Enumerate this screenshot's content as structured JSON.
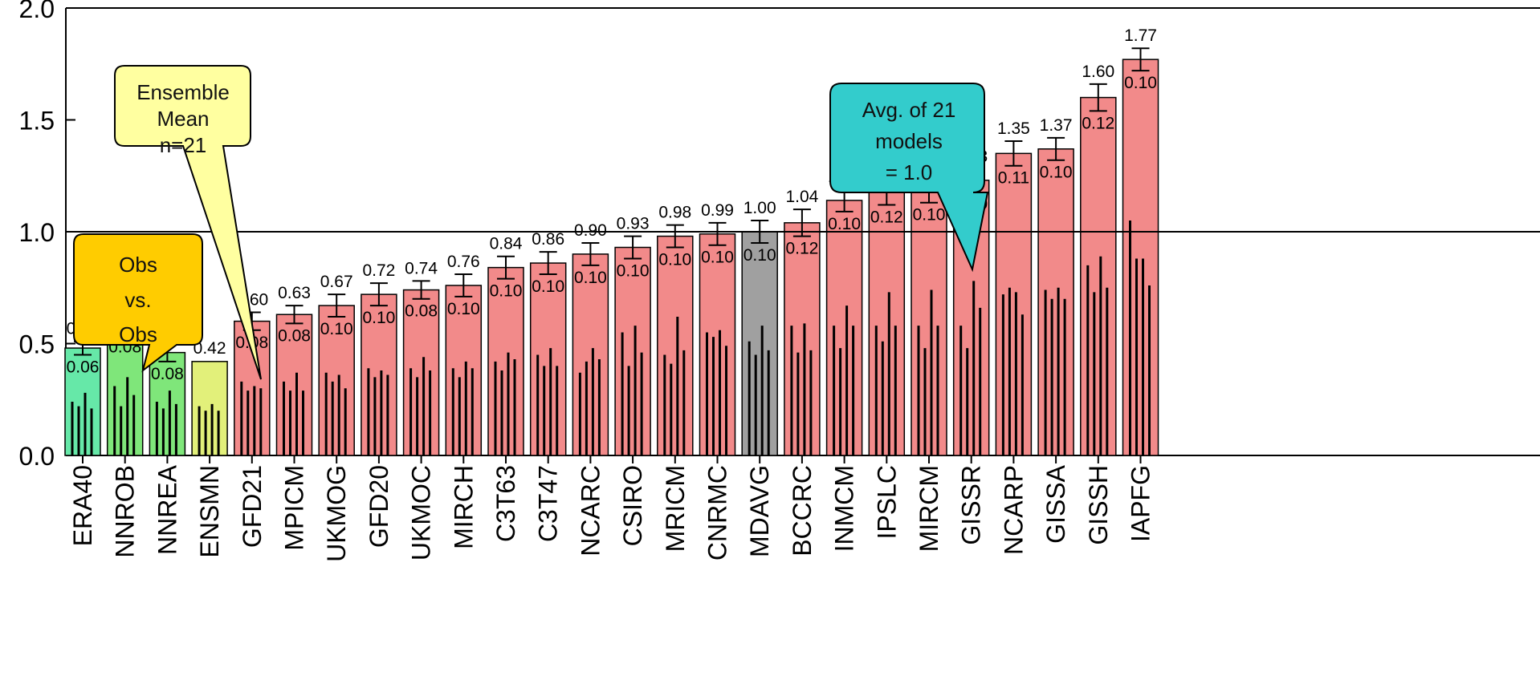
{
  "chart_data": {
    "type": "bar",
    "ylim": [
      0,
      2.0
    ],
    "yticks": [
      0.0,
      0.5,
      1.0,
      1.5,
      2.0
    ],
    "ytick_labels": [
      "0.0",
      "0.5",
      "1.0",
      "1.5",
      "2.0"
    ],
    "reference_line": 1.0,
    "grid": false,
    "categories": [
      "ERA40",
      "NNROB",
      "NNREA",
      "ENSMN",
      "GFD21",
      "MPICM",
      "UKMOG",
      "GFD20",
      "UKMOC",
      "MIRCH",
      "C3T63",
      "C3T47",
      "NCARC",
      "CSIRO",
      "MRICM",
      "CNRMC",
      "MDAVG",
      "BCCRC",
      "INMCM",
      "IPSLC",
      "MIRCM",
      "GISSR",
      "NCARP",
      "GISSA",
      "GISSH",
      "IAPFG"
    ],
    "values": [
      0.48,
      0.58,
      0.46,
      0.42,
      0.6,
      0.63,
      0.67,
      0.72,
      0.74,
      0.76,
      0.84,
      0.86,
      0.9,
      0.93,
      0.98,
      0.99,
      1.0,
      1.04,
      1.14,
      1.18,
      1.18,
      1.23,
      1.35,
      1.37,
      1.6,
      1.77
    ],
    "value_labels": [
      "0.48",
      "0.58",
      "0.46",
      "0.42",
      "0.60",
      "0.63",
      "0.67",
      "0.72",
      "0.74",
      "0.76",
      "0.84",
      "0.86",
      "0.90",
      "0.93",
      "0.98",
      "0.99",
      "1.00",
      "1.04",
      "1.14",
      "1.18",
      "1.18",
      "1.23",
      "1.35",
      "1.37",
      "1.60",
      "1.77"
    ],
    "errors": [
      0.06,
      0.08,
      0.08,
      null,
      0.08,
      0.08,
      0.1,
      0.1,
      0.08,
      0.1,
      0.1,
      0.1,
      0.1,
      0.1,
      0.1,
      0.1,
      0.1,
      0.12,
      0.1,
      0.12,
      0.1,
      0.1,
      0.11,
      0.1,
      0.12,
      0.1
    ],
    "error_labels": [
      "0.06",
      "0.08",
      "0.08",
      "",
      "0.08",
      "0.08",
      "0.10",
      "0.10",
      "0.08",
      "0.10",
      "0.10",
      "0.10",
      "0.10",
      "0.10",
      "0.10",
      "0.10",
      "0.10",
      "0.12",
      "0.10",
      "0.12",
      "0.10",
      "0.10",
      "0.11",
      "0.10",
      "0.12",
      "0.10"
    ],
    "bar_colors": [
      "#66e8a8",
      "#7fe67a",
      "#7fe67a",
      "#e2f07a",
      "#f28a8a",
      "#f28a8a",
      "#f28a8a",
      "#f28a8a",
      "#f28a8a",
      "#f28a8a",
      "#f28a8a",
      "#f28a8a",
      "#f28a8a",
      "#f28a8a",
      "#f28a8a",
      "#f28a8a",
      "#a0a0a0",
      "#f28a8a",
      "#f28a8a",
      "#f28a8a",
      "#f28a8a",
      "#f28a8a",
      "#f28a8a",
      "#f28a8a",
      "#f28a8a",
      "#f28a8a"
    ],
    "spikes": [
      [
        0.24,
        0.22,
        0.28,
        0.21
      ],
      [
        0.31,
        0.22,
        0.35,
        0.27
      ],
      [
        0.24,
        0.21,
        0.29,
        0.23
      ],
      [
        0.22,
        0.2,
        0.23,
        0.2
      ],
      [
        0.33,
        0.29,
        0.31,
        0.3
      ],
      [
        0.33,
        0.29,
        0.37,
        0.29
      ],
      [
        0.37,
        0.33,
        0.36,
        0.3
      ],
      [
        0.39,
        0.35,
        0.38,
        0.36
      ],
      [
        0.39,
        0.35,
        0.44,
        0.38
      ],
      [
        0.39,
        0.35,
        0.42,
        0.39
      ],
      [
        0.42,
        0.38,
        0.46,
        0.43
      ],
      [
        0.45,
        0.4,
        0.48,
        0.4
      ],
      [
        0.37,
        0.42,
        0.48,
        0.43
      ],
      [
        0.55,
        0.4,
        0.58,
        0.46
      ],
      [
        0.45,
        0.41,
        0.62,
        0.47
      ],
      [
        0.55,
        0.53,
        0.56,
        0.49
      ],
      [
        0.51,
        0.45,
        0.58,
        0.47
      ],
      [
        0.58,
        0.46,
        0.59,
        0.47
      ],
      [
        0.58,
        0.48,
        0.67,
        0.58
      ],
      [
        0.58,
        0.51,
        0.73,
        0.58
      ],
      [
        0.58,
        0.48,
        0.74,
        0.58
      ],
      [
        0.58,
        0.48,
        0.78,
        0.66
      ],
      [
        0.72,
        0.75,
        0.73,
        0.63
      ],
      [
        0.74,
        0.7,
        0.75,
        0.7
      ],
      [
        0.85,
        0.73,
        0.89,
        0.75
      ],
      [
        1.05,
        0.88,
        0.88,
        0.76
      ]
    ]
  },
  "callouts": [
    {
      "lines": [
        "Ensemble",
        "Mean",
        "n=21"
      ],
      "fill": "#ffffa0"
    },
    {
      "lines": [
        "Obs",
        "vs.",
        "Obs"
      ],
      "fill": "#ffcc00"
    },
    {
      "lines": [
        "Avg. of 21",
        "models",
        "= 1.0"
      ],
      "fill": "#33cccc"
    }
  ]
}
